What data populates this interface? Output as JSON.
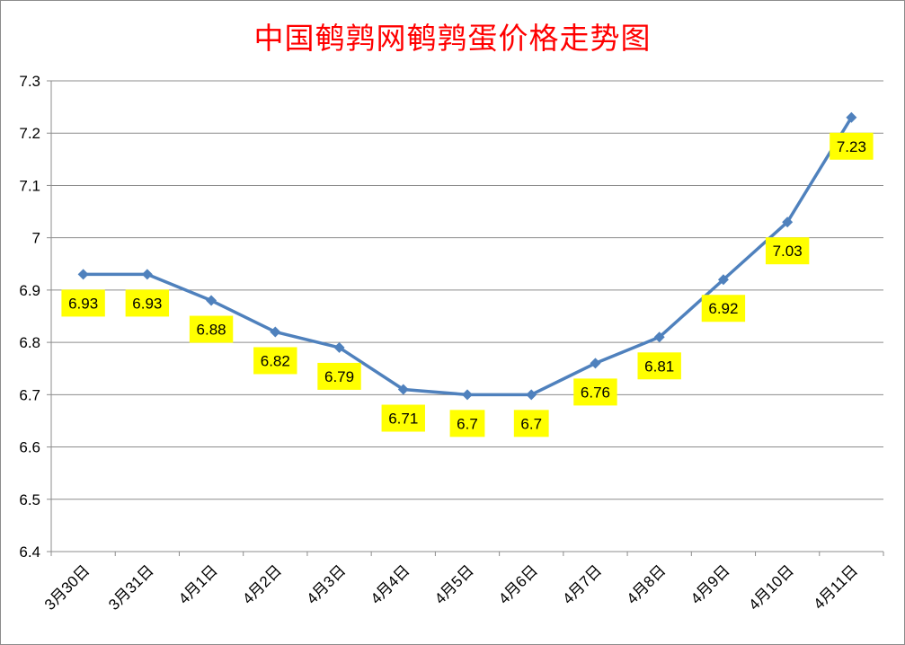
{
  "chart_data": {
    "type": "line",
    "title": "中国鹌鹑网鹌鹑蛋价格走势图",
    "categories": [
      "3月30日",
      "3月31日",
      "4月1日",
      "4月2日",
      "4月3日",
      "4月4日",
      "4月5日",
      "4月6日",
      "4月7日",
      "4月8日",
      "4月9日",
      "4月10日",
      "4月11日"
    ],
    "series": [
      {
        "values": [
          6.93,
          6.93,
          6.88,
          6.82,
          6.79,
          6.71,
          6.7,
          6.7,
          6.76,
          6.81,
          6.92,
          7.03,
          7.23
        ]
      }
    ],
    "data_labels": [
      "6.93",
      "6.93",
      "6.88",
      "6.82",
      "6.79",
      "6.71",
      "6.7",
      "6.7",
      "6.76",
      "6.81",
      "6.92",
      "7.03",
      "7.23"
    ],
    "y_ticks": [
      "6.4",
      "6.5",
      "6.6",
      "6.7",
      "6.8",
      "6.9",
      "7",
      "7.1",
      "7.2",
      "7.3"
    ],
    "ylim": [
      6.4,
      7.3
    ],
    "xlabel": "",
    "ylabel": "",
    "grid": true,
    "legend": "none",
    "colors": {
      "line": "#4f81bd",
      "label_bg": "#ffff00",
      "title": "#ff0000",
      "grid": "#8c8c8c"
    }
  }
}
